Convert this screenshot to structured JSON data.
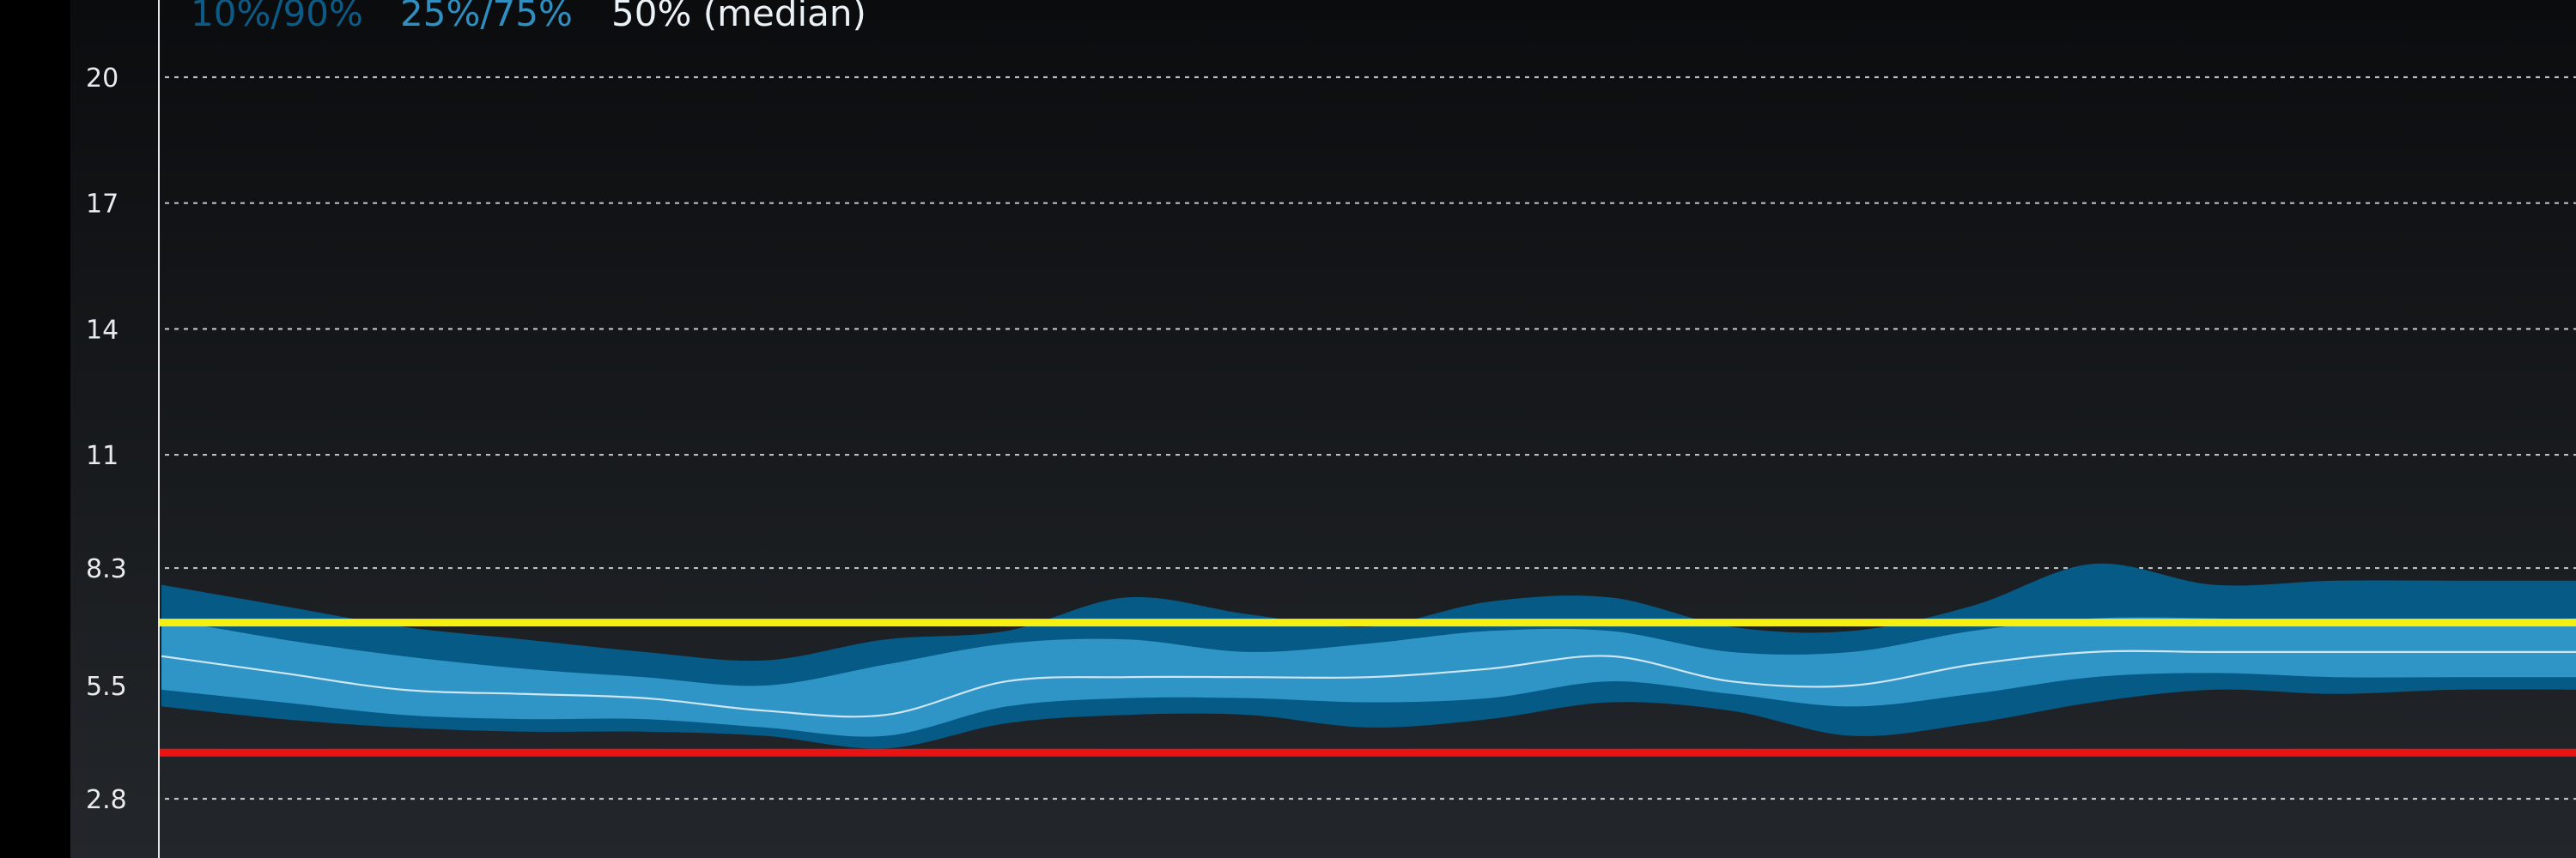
{
  "legend": {
    "items": [
      {
        "label": "10%/90%",
        "color": "#0c5b86"
      },
      {
        "label": "25%/75%",
        "color": "#2e8fc0"
      },
      {
        "label": "50% (median)",
        "color": "#eaf2f7"
      }
    ]
  },
  "colors": {
    "band_outer": "#065a86",
    "band_inner": "#2f94c6",
    "median_line": "#cfe6f2",
    "high_threshold": "#f5ef12",
    "low_threshold": "#e81414",
    "background_top": "#0b0c0e",
    "background_bottom": "#23272b"
  },
  "chart_data": {
    "type": "area",
    "title": "",
    "xlabel": "",
    "ylabel": "",
    "y_ticks": [
      "2.8",
      "5.5",
      "8.3",
      "11",
      "14",
      "17",
      "20"
    ],
    "ylim": [
      1.8,
      21.5
    ],
    "grid": "horizontal dashed",
    "legend_position": "top-left",
    "x": [
      0,
      0.05,
      0.1,
      0.15,
      0.2,
      0.25,
      0.3,
      0.35,
      0.4,
      0.45,
      0.5,
      0.55,
      0.6,
      0.65,
      0.7,
      0.75,
      0.8,
      0.85,
      0.9,
      0.95,
      1.0
    ],
    "series": [
      {
        "name": "10%/90%",
        "role": "outer_upper",
        "values": [
          7.9,
          7.4,
          6.9,
          6.6,
          6.3,
          6.1,
          6.6,
          6.8,
          7.6,
          7.2,
          6.9,
          7.5,
          7.6,
          6.9,
          6.8,
          7.4,
          8.4,
          7.9,
          8.0,
          8.0,
          8.0
        ]
      },
      {
        "name": "10%/90%",
        "role": "outer_lower",
        "values": [
          5.0,
          4.7,
          4.5,
          4.4,
          4.4,
          4.3,
          4.0,
          4.6,
          4.8,
          4.8,
          4.5,
          4.7,
          5.1,
          4.9,
          4.3,
          4.6,
          5.1,
          5.4,
          5.3,
          5.4,
          5.4
        ]
      },
      {
        "name": "25%/75%",
        "role": "inner_upper",
        "values": [
          7.1,
          6.6,
          6.2,
          5.9,
          5.7,
          5.5,
          6.0,
          6.5,
          6.6,
          6.3,
          6.5,
          6.8,
          6.8,
          6.3,
          6.3,
          6.8,
          7.1,
          7.1,
          7.0,
          7.0,
          7.1
        ]
      },
      {
        "name": "25%/75%",
        "role": "inner_lower",
        "values": [
          5.4,
          5.1,
          4.8,
          4.7,
          4.7,
          4.5,
          4.3,
          5.0,
          5.2,
          5.2,
          5.1,
          5.2,
          5.6,
          5.3,
          5.0,
          5.3,
          5.7,
          5.8,
          5.7,
          5.7,
          5.7
        ]
      },
      {
        "name": "50% (median)",
        "role": "median",
        "values": [
          6.2,
          5.8,
          5.4,
          5.3,
          5.2,
          4.9,
          4.8,
          5.6,
          5.7,
          5.7,
          5.7,
          5.9,
          6.2,
          5.6,
          5.5,
          6.0,
          6.3,
          6.3,
          6.3,
          6.3,
          6.3
        ]
      }
    ],
    "thresholds": [
      {
        "role": "high",
        "value": 7.0
      },
      {
        "role": "low",
        "value": 3.9
      }
    ]
  }
}
